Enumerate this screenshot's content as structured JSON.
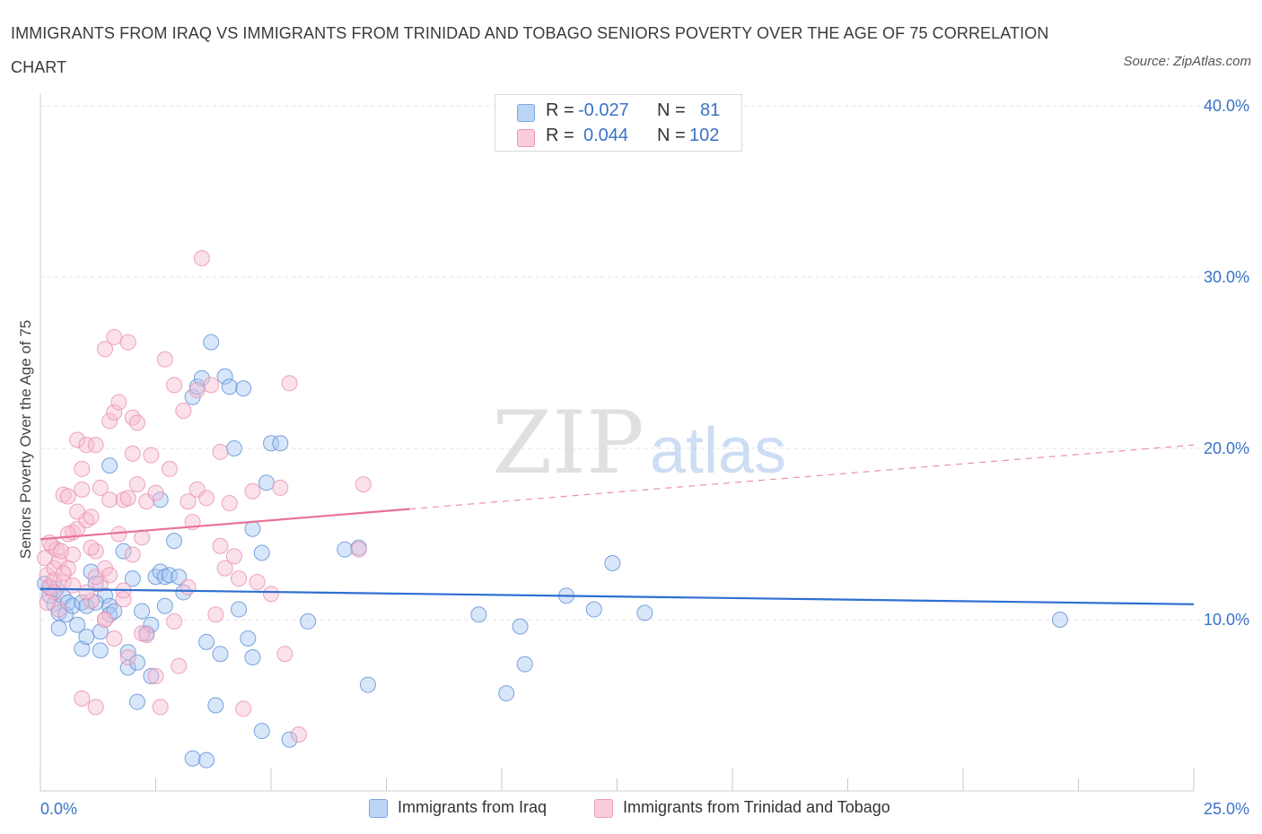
{
  "title": "IMMIGRANTS FROM IRAQ VS IMMIGRANTS FROM TRINIDAD AND TOBAGO SENIORS POVERTY OVER THE AGE OF 75 CORRELATION CHART",
  "source": "Source: ZipAtlas.com",
  "watermark": {
    "zip": "ZIP",
    "atlas": "atlas"
  },
  "legend": {
    "r_label": "R =",
    "n_label": "N =",
    "rows": [
      {
        "r": "-0.027",
        "n": "81",
        "color": "#a9c8f2"
      },
      {
        "r": "0.044",
        "n": "102",
        "color": "#f6bcd0"
      }
    ]
  },
  "bottom_legend": [
    {
      "label": "Immigrants from Iraq",
      "color": "#a9c8f2"
    },
    {
      "label": "Immigrants from Trinidad and Tobago",
      "color": "#f6bcd0"
    }
  ],
  "chart_data": {
    "type": "scatter",
    "title": "IMMIGRANTS FROM IRAQ VS IMMIGRANTS FROM TRINIDAD AND TOBAGO SENIORS POVERTY OVER THE AGE OF 75 CORRELATION CHART",
    "xlabel": "",
    "ylabel": "Seniors Poverty Over the Age of 75",
    "xlim": [
      0,
      25
    ],
    "ylim": [
      0,
      40
    ],
    "x_tick_labels": [
      {
        "value": 0,
        "label": "0.0%"
      },
      {
        "value": 25,
        "label": "25.0%"
      }
    ],
    "y_tick_labels": [
      {
        "value": 10,
        "label": "10.0%"
      },
      {
        "value": 20,
        "label": "20.0%"
      },
      {
        "value": 30,
        "label": "30.0%"
      },
      {
        "value": 40,
        "label": "40.0%"
      }
    ],
    "grid": true,
    "series": [
      {
        "name": "Immigrants from Iraq",
        "color": "#5b8fd6",
        "fill": "#a9c8f2",
        "trend": {
          "x0": 0,
          "y0": 11.8,
          "x1": 25,
          "y1": 10.9,
          "dashed_from": null,
          "color": "#2e6fd1"
        },
        "points": [
          [
            0.1,
            12.1
          ],
          [
            0.2,
            11.4
          ],
          [
            0.3,
            10.9
          ],
          [
            0.35,
            11.8
          ],
          [
            0.4,
            10.4
          ],
          [
            0.4,
            9.5
          ],
          [
            0.5,
            11.3
          ],
          [
            0.55,
            10.3
          ],
          [
            0.6,
            11.0
          ],
          [
            0.7,
            10.8
          ],
          [
            0.8,
            9.7
          ],
          [
            0.9,
            11.0
          ],
          [
            0.9,
            8.3
          ],
          [
            1.0,
            10.8
          ],
          [
            1.0,
            9.0
          ],
          [
            1.1,
            12.8
          ],
          [
            1.2,
            12.1
          ],
          [
            1.3,
            9.3
          ],
          [
            1.3,
            8.2
          ],
          [
            1.4,
            11.4
          ],
          [
            1.5,
            10.8
          ],
          [
            1.5,
            10.3
          ],
          [
            1.6,
            10.5
          ],
          [
            1.5,
            19.0
          ],
          [
            1.8,
            14.0
          ],
          [
            1.9,
            8.1
          ],
          [
            1.9,
            7.2
          ],
          [
            2.0,
            12.4
          ],
          [
            2.1,
            5.2
          ],
          [
            2.1,
            7.5
          ],
          [
            2.2,
            10.5
          ],
          [
            2.3,
            9.2
          ],
          [
            2.4,
            9.7
          ],
          [
            2.4,
            6.7
          ],
          [
            2.5,
            12.5
          ],
          [
            2.6,
            12.8
          ],
          [
            2.7,
            12.5
          ],
          [
            2.7,
            10.8
          ],
          [
            2.8,
            12.6
          ],
          [
            2.9,
            14.6
          ],
          [
            3.0,
            12.5
          ],
          [
            3.1,
            11.6
          ],
          [
            3.3,
            23.0
          ],
          [
            3.4,
            23.6
          ],
          [
            3.5,
            24.1
          ],
          [
            3.6,
            8.7
          ],
          [
            3.7,
            26.2
          ],
          [
            3.8,
            5.0
          ],
          [
            3.9,
            8.0
          ],
          [
            4.0,
            24.2
          ],
          [
            4.1,
            23.6
          ],
          [
            4.2,
            20.0
          ],
          [
            4.3,
            10.6
          ],
          [
            4.4,
            23.5
          ],
          [
            4.5,
            8.9
          ],
          [
            4.6,
            7.8
          ],
          [
            4.6,
            15.3
          ],
          [
            4.8,
            3.5
          ],
          [
            4.8,
            13.9
          ],
          [
            4.9,
            18.0
          ],
          [
            5.0,
            20.3
          ],
          [
            5.2,
            20.3
          ],
          [
            5.4,
            3.0
          ],
          [
            5.8,
            9.9
          ],
          [
            6.6,
            14.1
          ],
          [
            6.9,
            14.2
          ],
          [
            7.1,
            6.2
          ],
          [
            9.5,
            10.3
          ],
          [
            10.1,
            5.7
          ],
          [
            10.4,
            9.6
          ],
          [
            10.5,
            7.4
          ],
          [
            11.4,
            11.4
          ],
          [
            12.0,
            10.6
          ],
          [
            12.4,
            13.3
          ],
          [
            13.1,
            10.4
          ],
          [
            22.1,
            10.0
          ],
          [
            3.3,
            1.9
          ],
          [
            3.6,
            1.8
          ],
          [
            2.6,
            17.0
          ],
          [
            1.2,
            11.0
          ],
          [
            0.2,
            11.9
          ]
        ]
      },
      {
        "name": "Immigrants from Trinidad and Tobago",
        "color": "#e98fb0",
        "fill": "#f6bcd0",
        "trend": {
          "x0": 0,
          "y0": 14.7,
          "x1": 25,
          "y1": 20.2,
          "dashed_from": 8.0,
          "color": "#e8729a"
        },
        "points": [
          [
            0.1,
            13.6
          ],
          [
            0.15,
            12.6
          ],
          [
            0.2,
            11.9
          ],
          [
            0.25,
            14.3
          ],
          [
            0.3,
            13.0
          ],
          [
            0.3,
            12.3
          ],
          [
            0.35,
            14.1
          ],
          [
            0.4,
            13.4
          ],
          [
            0.45,
            14.0
          ],
          [
            0.5,
            12.2
          ],
          [
            0.5,
            17.3
          ],
          [
            0.6,
            17.2
          ],
          [
            0.6,
            13.0
          ],
          [
            0.7,
            15.1
          ],
          [
            0.7,
            13.8
          ],
          [
            0.8,
            20.5
          ],
          [
            0.8,
            15.3
          ],
          [
            0.9,
            18.8
          ],
          [
            0.9,
            17.6
          ],
          [
            1.0,
            20.2
          ],
          [
            1.0,
            15.8
          ],
          [
            1.1,
            11.1
          ],
          [
            1.1,
            16.0
          ],
          [
            1.2,
            20.2
          ],
          [
            1.2,
            14.0
          ],
          [
            1.3,
            17.7
          ],
          [
            1.3,
            12.1
          ],
          [
            1.4,
            25.8
          ],
          [
            1.4,
            10.0
          ],
          [
            1.5,
            21.6
          ],
          [
            1.5,
            17.0
          ],
          [
            1.6,
            22.1
          ],
          [
            1.6,
            26.5
          ],
          [
            1.7,
            22.7
          ],
          [
            1.7,
            15.0
          ],
          [
            1.8,
            17.0
          ],
          [
            1.8,
            11.2
          ],
          [
            1.9,
            26.2
          ],
          [
            1.9,
            17.1
          ],
          [
            2.0,
            21.8
          ],
          [
            2.0,
            19.7
          ],
          [
            2.1,
            17.9
          ],
          [
            2.1,
            21.5
          ],
          [
            2.2,
            14.8
          ],
          [
            2.3,
            16.9
          ],
          [
            2.3,
            9.1
          ],
          [
            2.4,
            19.6
          ],
          [
            2.5,
            6.7
          ],
          [
            2.5,
            17.4
          ],
          [
            2.6,
            4.9
          ],
          [
            2.7,
            25.2
          ],
          [
            2.8,
            18.8
          ],
          [
            2.9,
            23.7
          ],
          [
            2.9,
            9.9
          ],
          [
            3.0,
            7.3
          ],
          [
            3.1,
            22.2
          ],
          [
            3.2,
            11.9
          ],
          [
            3.2,
            16.9
          ],
          [
            3.3,
            15.7
          ],
          [
            3.4,
            17.6
          ],
          [
            3.4,
            23.4
          ],
          [
            3.5,
            31.1
          ],
          [
            3.6,
            17.1
          ],
          [
            3.7,
            23.7
          ],
          [
            3.8,
            10.3
          ],
          [
            3.9,
            19.8
          ],
          [
            4.0,
            13.0
          ],
          [
            4.1,
            16.8
          ],
          [
            4.2,
            13.7
          ],
          [
            4.3,
            12.4
          ],
          [
            4.4,
            4.8
          ],
          [
            4.6,
            17.5
          ],
          [
            4.7,
            12.2
          ],
          [
            5.0,
            11.5
          ],
          [
            5.2,
            17.7
          ],
          [
            5.3,
            8.0
          ],
          [
            5.4,
            23.8
          ],
          [
            5.6,
            3.3
          ],
          [
            6.9,
            14.1
          ],
          [
            7.0,
            17.9
          ],
          [
            0.9,
            5.4
          ],
          [
            1.2,
            4.9
          ],
          [
            1.4,
            10.0
          ],
          [
            1.6,
            8.9
          ],
          [
            1.9,
            7.8
          ],
          [
            2.2,
            9.2
          ],
          [
            0.4,
            10.6
          ],
          [
            0.5,
            12.7
          ],
          [
            0.7,
            12.0
          ],
          [
            1.0,
            11.6
          ],
          [
            1.2,
            12.5
          ],
          [
            1.4,
            13.0
          ],
          [
            0.2,
            14.5
          ],
          [
            0.3,
            11.6
          ],
          [
            0.6,
            15.0
          ],
          [
            0.8,
            16.3
          ],
          [
            1.1,
            14.2
          ],
          [
            1.5,
            12.6
          ],
          [
            1.8,
            11.7
          ],
          [
            2.0,
            13.8
          ],
          [
            0.15,
            11.0
          ],
          [
            3.9,
            14.3
          ]
        ]
      }
    ]
  }
}
